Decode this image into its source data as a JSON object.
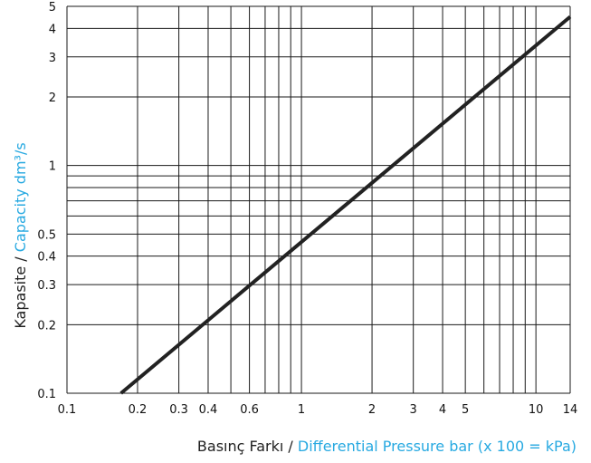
{
  "chart_data": {
    "type": "line",
    "x_scale": "log",
    "y_scale": "log",
    "xlim": [
      0.1,
      14
    ],
    "ylim": [
      0.1,
      5
    ],
    "grid": true,
    "x_ticks": [
      {
        "value": 0.1,
        "label": "0.1"
      },
      {
        "value": 0.2,
        "label": "0.2"
      },
      {
        "value": 0.3,
        "label": "0.3"
      },
      {
        "value": 0.4,
        "label": "0.4"
      },
      {
        "value": 0.6,
        "label": "0.6"
      },
      {
        "value": 1,
        "label": "1"
      },
      {
        "value": 2,
        "label": "2"
      },
      {
        "value": 3,
        "label": "3"
      },
      {
        "value": 4,
        "label": "4"
      },
      {
        "value": 5,
        "label": "5"
      },
      {
        "value": 10,
        "label": "10"
      },
      {
        "value": 14,
        "label": "14"
      }
    ],
    "x_gridlines": [
      0.1,
      0.2,
      0.3,
      0.4,
      0.5,
      0.6,
      0.7,
      0.8,
      0.9,
      1,
      2,
      3,
      4,
      5,
      6,
      7,
      8,
      9,
      10,
      14
    ],
    "y_ticks": [
      {
        "value": 0.1,
        "label": "0.1"
      },
      {
        "value": 0.2,
        "label": "0.2"
      },
      {
        "value": 0.3,
        "label": "0.3"
      },
      {
        "value": 0.4,
        "label": "0.4"
      },
      {
        "value": 0.5,
        "label": "0.5"
      },
      {
        "value": 1,
        "label": "1"
      },
      {
        "value": 2,
        "label": "2"
      },
      {
        "value": 3,
        "label": "3"
      },
      {
        "value": 4,
        "label": "4"
      },
      {
        "value": 5,
        "label": "5"
      }
    ],
    "y_gridlines": [
      0.1,
      0.2,
      0.3,
      0.4,
      0.5,
      0.6,
      0.7,
      0.8,
      0.9,
      1,
      2,
      3,
      4,
      5
    ],
    "series": [
      {
        "x": [
          0.17,
          14
        ],
        "y": [
          0.1,
          4.5
        ],
        "color": "#222222"
      }
    ],
    "xlabel_parts": [
      {
        "text": "Basınç Farkı / ",
        "color": "#222222"
      },
      {
        "text": "Differential Pressure  bar (x 100 = kPa)",
        "color": "#27a9e1"
      }
    ],
    "ylabel_parts": [
      {
        "text": "Kapasite / ",
        "color": "#222222"
      },
      {
        "text": "Capacity dm³/s",
        "color": "#27a9e1"
      }
    ]
  }
}
